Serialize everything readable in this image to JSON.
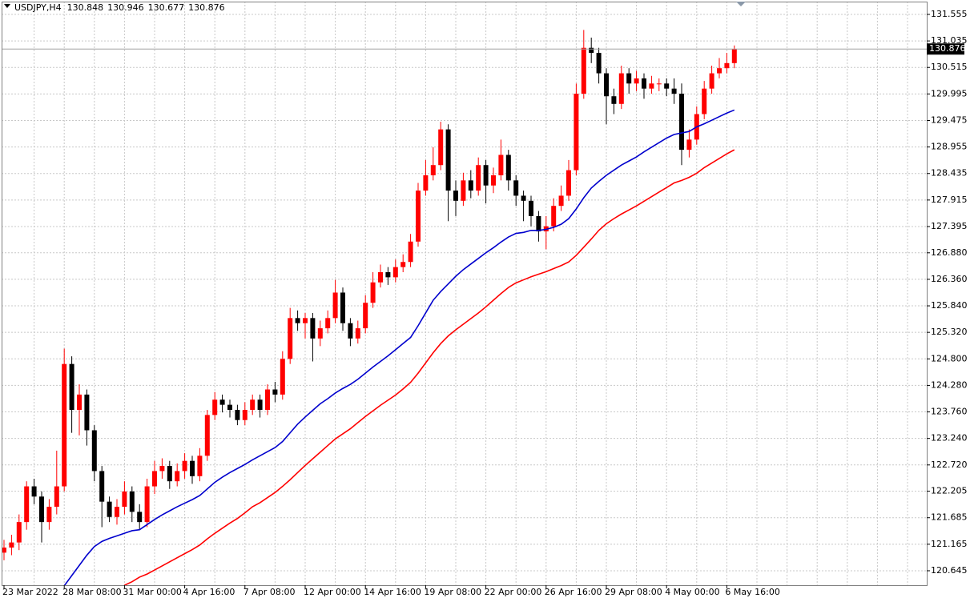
{
  "chart_data": {
    "type": "candlestick",
    "symbol": "USDJPY,H4",
    "ohlc": [
      130.848,
      130.946,
      130.677,
      130.876
    ],
    "current_price": 130.876,
    "up_color": "#ff0000",
    "down_color": "#000000",
    "grid": true,
    "ylim": [
      120.362,
      131.806
    ],
    "yticks": [
      131.555,
      131.035,
      130.515,
      129.995,
      129.475,
      128.955,
      128.435,
      127.915,
      127.395,
      {
        "value": 126.88,
        "label": "126.880"
      },
      {
        "value": 126.36,
        "label": "126.360"
      },
      {
        "value": 125.84,
        "label": "125.840"
      },
      {
        "value": 125.32,
        "label": "125.320"
      },
      {
        "value": 124.8,
        "label": "124.800"
      },
      {
        "value": 124.28,
        "label": "124.280"
      },
      {
        "value": 123.76,
        "label": "123.760"
      },
      {
        "value": 123.24,
        "label": "123.240"
      },
      {
        "value": 122.72,
        "label": "122.720"
      },
      122.205,
      121.685,
      121.165,
      120.645
    ],
    "categories": [
      "23 Mar 2022",
      null,
      null,
      null,
      null,
      null,
      null,
      null,
      "28 Mar 08:00",
      null,
      null,
      null,
      null,
      null,
      null,
      null,
      "31 Mar 00:00",
      null,
      null,
      null,
      null,
      null,
      null,
      null,
      "4 Apr 16:00",
      null,
      null,
      null,
      null,
      null,
      null,
      null,
      "7 Apr 08:00",
      null,
      null,
      null,
      null,
      null,
      null,
      null,
      "12 Apr 00:00",
      null,
      null,
      null,
      null,
      null,
      null,
      null,
      "14 Apr 16:00",
      null,
      null,
      null,
      null,
      null,
      null,
      null,
      "19 Apr 08:00",
      null,
      null,
      null,
      null,
      null,
      null,
      null,
      "22 Apr 00:00",
      null,
      null,
      null,
      null,
      null,
      null,
      null,
      "26 Apr 16:00",
      null,
      null,
      null,
      null,
      null,
      null,
      null,
      "29 Apr 08:00",
      null,
      null,
      null,
      null,
      null,
      null,
      null,
      "4 May 00:00",
      null,
      null,
      null,
      null,
      null,
      null,
      null,
      "6 May 16:00",
      null
    ],
    "open": [
      121.0,
      121.1,
      121.2,
      121.6,
      122.3,
      122.1,
      121.6,
      121.9,
      122.3,
      124.7,
      123.8,
      124.1,
      123.4,
      122.6,
      122.0,
      121.7,
      121.9,
      122.2,
      121.8,
      121.6,
      122.3,
      122.6,
      122.7,
      122.4,
      122.6,
      122.8,
      122.5,
      122.9,
      123.7,
      124.0,
      123.9,
      123.8,
      123.6,
      123.8,
      124.0,
      123.8,
      124.2,
      124.1,
      124.8,
      125.6,
      125.5,
      125.6,
      125.2,
      125.4,
      125.6,
      126.1,
      125.5,
      125.2,
      125.4,
      125.9,
      126.3,
      126.5,
      126.4,
      126.6,
      126.7,
      127.1,
      128.1,
      128.4,
      128.6,
      129.3,
      128.1,
      127.9,
      128.3,
      128.1,
      128.6,
      128.2,
      128.4,
      128.8,
      128.3,
      128.0,
      127.9,
      127.6,
      127.3,
      127.4,
      127.8,
      128.0,
      128.5,
      130.0,
      130.9,
      130.8,
      130.4,
      129.95,
      129.8,
      130.4,
      130.2,
      130.3,
      130.1,
      130.2,
      130.2,
      130.1,
      130.0,
      128.9,
      129.1,
      129.6,
      130.1,
      130.4,
      130.5,
      130.6
    ],
    "high": [
      121.25,
      121.35,
      121.75,
      122.4,
      122.45,
      122.2,
      122.05,
      123.0,
      125.0,
      124.85,
      124.3,
      124.2,
      123.5,
      122.7,
      122.1,
      122.05,
      122.4,
      122.3,
      121.95,
      122.45,
      122.8,
      122.85,
      122.8,
      122.75,
      122.95,
      122.9,
      123.05,
      123.8,
      124.15,
      124.1,
      124.0,
      123.9,
      123.95,
      124.1,
      124.1,
      124.3,
      124.35,
      124.95,
      125.8,
      125.75,
      125.7,
      125.7,
      125.55,
      125.75,
      126.35,
      126.2,
      125.6,
      125.55,
      126.05,
      126.5,
      126.65,
      126.6,
      126.75,
      126.85,
      127.25,
      128.25,
      128.7,
      128.95,
      129.45,
      129.4,
      128.3,
      128.45,
      128.5,
      128.75,
      128.7,
      128.55,
      129.1,
      128.9,
      128.4,
      128.1,
      128.0,
      127.7,
      127.6,
      127.95,
      128.2,
      128.7,
      130.2,
      131.25,
      131.1,
      130.9,
      130.5,
      130.1,
      130.55,
      130.5,
      130.45,
      130.4,
      130.35,
      130.3,
      130.3,
      130.3,
      130.2,
      129.3,
      129.75,
      130.25,
      130.55,
      130.7,
      130.8,
      130.946
    ],
    "low": [
      120.85,
      120.95,
      121.05,
      121.45,
      121.95,
      121.2,
      121.45,
      121.75,
      122.2,
      123.35,
      123.3,
      123.1,
      122.4,
      121.5,
      121.6,
      121.55,
      121.75,
      121.6,
      121.45,
      121.5,
      122.15,
      122.45,
      122.25,
      122.3,
      122.45,
      122.35,
      122.4,
      122.8,
      123.6,
      123.75,
      123.65,
      123.5,
      123.5,
      123.7,
      123.65,
      123.7,
      123.95,
      124.0,
      124.7,
      125.35,
      125.2,
      124.75,
      125.05,
      125.3,
      125.5,
      125.35,
      125.05,
      125.1,
      125.3,
      125.8,
      126.2,
      126.25,
      126.3,
      126.5,
      126.6,
      127.0,
      128.0,
      128.3,
      128.5,
      127.5,
      127.6,
      127.8,
      127.95,
      128.0,
      127.85,
      128.05,
      128.3,
      128.1,
      127.8,
      127.5,
      127.4,
      127.1,
      126.95,
      127.3,
      127.7,
      127.9,
      128.4,
      129.9,
      130.6,
      130.2,
      129.4,
      129.6,
      129.7,
      130.0,
      130.05,
      129.9,
      130.0,
      130.05,
      129.95,
      129.8,
      128.6,
      128.75,
      129.0,
      129.5,
      130.0,
      130.3,
      130.4,
      130.5
    ],
    "close": [
      121.1,
      121.2,
      121.6,
      122.3,
      122.1,
      121.6,
      121.9,
      122.3,
      124.7,
      123.8,
      124.1,
      123.4,
      122.6,
      122.0,
      121.7,
      121.9,
      122.2,
      121.8,
      121.6,
      122.3,
      122.6,
      122.7,
      122.4,
      122.6,
      122.8,
      122.5,
      122.9,
      123.7,
      124.0,
      123.9,
      123.8,
      123.6,
      123.8,
      124.0,
      123.8,
      124.2,
      124.1,
      124.8,
      125.6,
      125.5,
      125.6,
      125.2,
      125.4,
      125.6,
      126.1,
      125.5,
      125.2,
      125.4,
      125.9,
      126.3,
      126.5,
      126.4,
      126.6,
      126.7,
      127.1,
      128.1,
      128.4,
      128.6,
      129.3,
      128.1,
      127.9,
      128.3,
      128.1,
      128.6,
      128.2,
      128.4,
      128.8,
      128.3,
      128.0,
      127.9,
      127.6,
      127.3,
      127.4,
      127.8,
      128.0,
      128.5,
      130.0,
      130.9,
      130.8,
      130.4,
      129.95,
      129.8,
      130.4,
      130.2,
      130.3,
      130.1,
      130.2,
      130.2,
      130.1,
      130.0,
      128.9,
      129.1,
      129.6,
      130.1,
      130.4,
      130.5,
      130.6,
      130.876
    ],
    "series": [
      {
        "color": "#0000cd",
        "values": [
          null,
          null,
          null,
          null,
          null,
          null,
          null,
          null,
          120.35,
          120.55,
          120.75,
          120.95,
          121.12,
          121.22,
          121.28,
          121.33,
          121.38,
          121.43,
          121.45,
          121.55,
          121.65,
          121.74,
          121.82,
          121.9,
          121.97,
          122.04,
          122.12,
          122.25,
          122.38,
          122.48,
          122.57,
          122.65,
          122.73,
          122.82,
          122.9,
          122.98,
          123.06,
          123.18,
          123.35,
          123.52,
          123.66,
          123.79,
          123.92,
          124.02,
          124.13,
          124.22,
          124.3,
          124.4,
          124.52,
          124.64,
          124.75,
          124.86,
          124.98,
          125.1,
          125.22,
          125.45,
          125.7,
          125.95,
          126.12,
          126.27,
          126.42,
          126.55,
          126.66,
          126.77,
          126.88,
          126.98,
          127.09,
          127.19,
          127.26,
          127.28,
          127.32,
          127.32,
          127.34,
          127.38,
          127.44,
          127.55,
          127.74,
          127.96,
          128.15,
          128.28,
          128.4,
          128.5,
          128.6,
          128.68,
          128.76,
          128.86,
          128.95,
          129.04,
          129.13,
          129.2,
          129.23,
          129.26,
          129.35,
          129.41,
          129.48,
          129.55,
          129.62,
          129.68
        ]
      },
      {
        "color": "#ff0000",
        "values": [
          null,
          null,
          null,
          null,
          null,
          null,
          null,
          null,
          null,
          null,
          null,
          null,
          null,
          null,
          null,
          null,
          120.36,
          120.43,
          120.52,
          120.58,
          120.66,
          120.74,
          120.82,
          120.9,
          120.98,
          121.06,
          121.15,
          121.27,
          121.38,
          121.48,
          121.58,
          121.67,
          121.78,
          121.9,
          121.98,
          122.08,
          122.18,
          122.3,
          122.43,
          122.57,
          122.71,
          122.84,
          122.97,
          123.1,
          123.23,
          123.33,
          123.43,
          123.55,
          123.67,
          123.78,
          123.89,
          123.99,
          124.09,
          124.21,
          124.34,
          124.52,
          124.72,
          124.92,
          125.1,
          125.25,
          125.37,
          125.48,
          125.59,
          125.7,
          125.82,
          125.95,
          126.08,
          126.2,
          126.29,
          126.35,
          126.41,
          126.46,
          126.51,
          126.57,
          126.63,
          126.7,
          126.83,
          126.99,
          127.15,
          127.32,
          127.45,
          127.55,
          127.64,
          127.72,
          127.8,
          127.89,
          127.98,
          128.07,
          128.16,
          128.25,
          128.3,
          128.36,
          128.44,
          128.55,
          128.64,
          128.73,
          128.82,
          128.9
        ]
      }
    ]
  }
}
